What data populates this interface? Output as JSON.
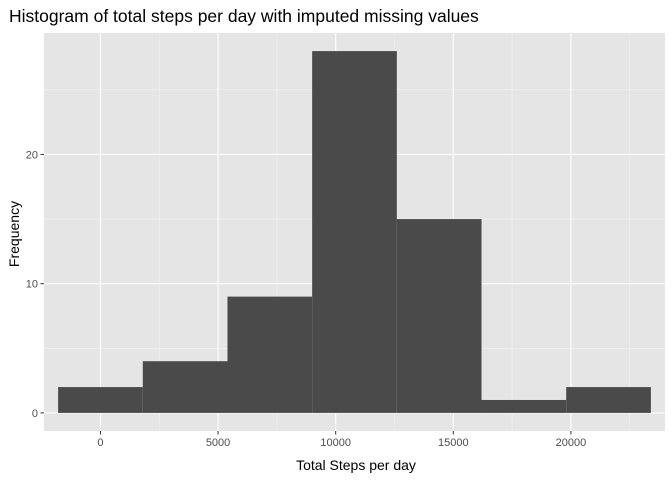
{
  "chart_data": {
    "type": "bar",
    "title": "Histogram of total steps per day with imputed missing values",
    "xlabel": "Total Steps per day",
    "ylabel": "Frequency",
    "xlim": [
      -2400,
      24000
    ],
    "ylim": [
      -1.4,
      29.4
    ],
    "x_ticks": [
      0,
      5000,
      10000,
      15000,
      20000
    ],
    "x_tick_labels": [
      "0",
      "5000",
      "10000",
      "15000",
      "20000"
    ],
    "y_ticks": [
      0,
      10,
      20
    ],
    "y_tick_labels": [
      "0",
      "10",
      "20"
    ],
    "bins": [
      {
        "start": -1800,
        "end": 1800,
        "count": 2
      },
      {
        "start": 1800,
        "end": 5400,
        "count": 4
      },
      {
        "start": 5400,
        "end": 9000,
        "count": 9
      },
      {
        "start": 9000,
        "end": 12600,
        "count": 28
      },
      {
        "start": 12600,
        "end": 16200,
        "count": 15
      },
      {
        "start": 16200,
        "end": 19800,
        "count": 1
      },
      {
        "start": 19800,
        "end": 23400,
        "count": 2
      }
    ],
    "grid": true,
    "legend": "none",
    "colors": {
      "panel_background": "#e5e5e5",
      "grid_major": "#ffffff",
      "grid_minor": "#f2f2f2",
      "bar_fill": "#4a4a4a",
      "tick_text": "#4d4d4d",
      "tick_mark": "#333333"
    }
  }
}
